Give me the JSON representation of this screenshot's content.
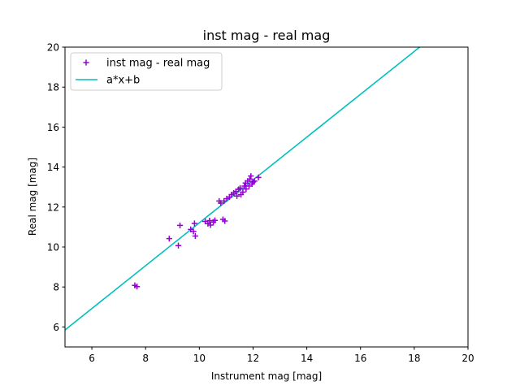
{
  "chart_data": {
    "type": "scatter",
    "title": "inst mag - real mag",
    "xlabel": "Instrument mag [mag]",
    "ylabel": "Real mag [mag]",
    "xlim": [
      5,
      20
    ],
    "ylim": [
      5,
      20
    ],
    "xticks": [
      6,
      8,
      10,
      12,
      14,
      16,
      18,
      20
    ],
    "yticks": [
      6,
      8,
      10,
      12,
      14,
      16,
      18,
      20
    ],
    "grid": false,
    "legend_position": "top-left",
    "series": [
      {
        "name": "inst mag - real mag",
        "kind": "scatter",
        "marker": "plus",
        "color": "#9400d3",
        "points": [
          [
            7.6,
            8.08
          ],
          [
            7.68,
            8.02
          ],
          [
            8.88,
            10.42
          ],
          [
            9.22,
            10.07
          ],
          [
            9.28,
            11.08
          ],
          [
            9.68,
            10.88
          ],
          [
            9.78,
            10.78
          ],
          [
            9.85,
            10.55
          ],
          [
            9.82,
            11.18
          ],
          [
            10.22,
            11.28
          ],
          [
            10.32,
            11.17
          ],
          [
            10.38,
            11.32
          ],
          [
            10.42,
            11.1
          ],
          [
            10.52,
            11.25
          ],
          [
            10.58,
            11.33
          ],
          [
            10.74,
            12.3
          ],
          [
            10.8,
            12.2
          ],
          [
            10.92,
            12.3
          ],
          [
            10.88,
            11.38
          ],
          [
            10.95,
            11.3
          ],
          [
            11.02,
            12.42
          ],
          [
            11.12,
            12.5
          ],
          [
            11.2,
            12.62
          ],
          [
            11.28,
            12.7
          ],
          [
            11.36,
            12.78
          ],
          [
            11.4,
            12.55
          ],
          [
            11.46,
            12.88
          ],
          [
            11.52,
            12.95
          ],
          [
            11.55,
            12.62
          ],
          [
            11.62,
            12.75
          ],
          [
            11.68,
            13.05
          ],
          [
            11.72,
            13.2
          ],
          [
            11.74,
            12.9
          ],
          [
            11.8,
            13.3
          ],
          [
            11.85,
            13.05
          ],
          [
            11.88,
            13.4
          ],
          [
            11.92,
            13.55
          ],
          [
            11.96,
            13.15
          ],
          [
            12.0,
            13.25
          ],
          [
            12.05,
            13.3
          ],
          [
            12.2,
            13.48
          ]
        ]
      },
      {
        "name": "a*x+b",
        "kind": "line",
        "color": "#00bfbf",
        "x": [
          5.0,
          18.2
        ],
        "y": [
          5.85,
          20.0
        ]
      }
    ]
  }
}
